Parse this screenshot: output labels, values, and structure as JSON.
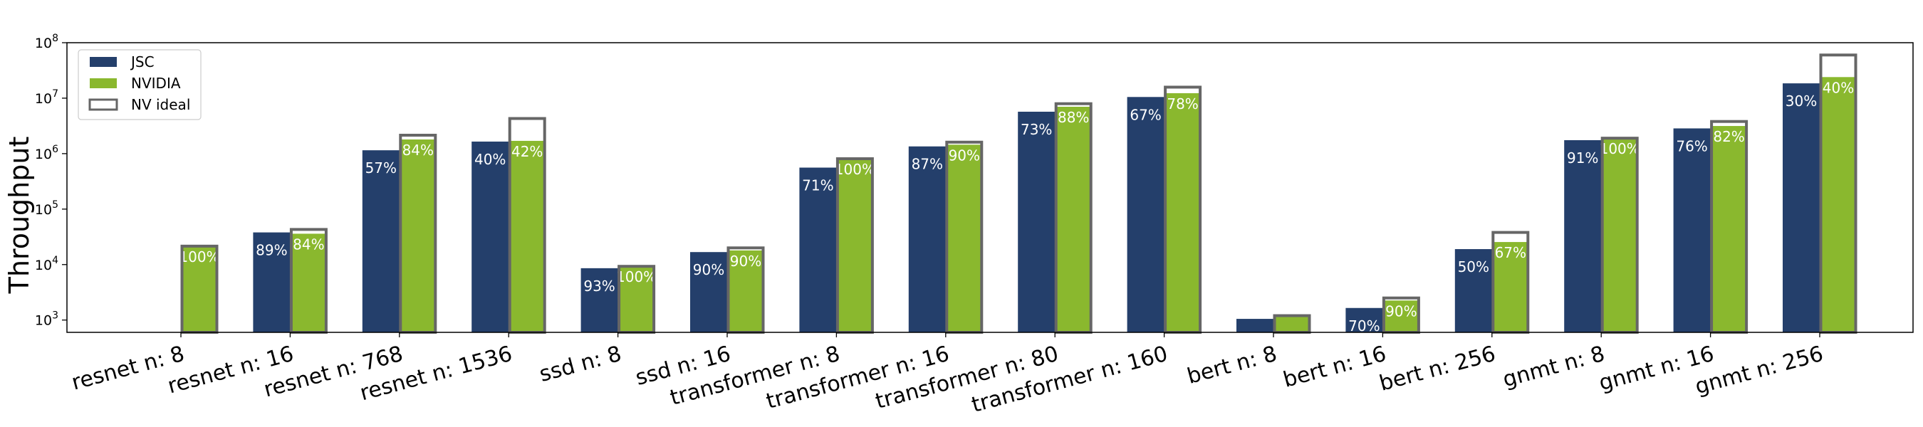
{
  "chart_data": {
    "type": "bar",
    "ylabel": "Throughput",
    "yscale": "log",
    "ylim": [
      600,
      100000000
    ],
    "yticks": [
      {
        "value": 1000,
        "base": "10",
        "exp": "3"
      },
      {
        "value": 10000,
        "base": "10",
        "exp": "4"
      },
      {
        "value": 100000,
        "base": "10",
        "exp": "5"
      },
      {
        "value": 1000000,
        "base": "10",
        "exp": "6"
      },
      {
        "value": 10000000,
        "base": "10",
        "exp": "7"
      },
      {
        "value": 100000000,
        "base": "10",
        "exp": "8"
      }
    ],
    "legend_position": "top-left",
    "categories": [
      "resnet n: 8",
      "resnet n: 16",
      "resnet n: 768",
      "resnet n: 1536",
      "ssd n: 8",
      "ssd n: 16",
      "transformer n: 8",
      "transformer n: 16",
      "transformer n: 80",
      "transformer n: 160",
      "bert n: 8",
      "bert n: 16",
      "bert n: 256",
      "gnmt n: 8",
      "gnmt n: 16",
      "gnmt n: 256"
    ],
    "series": [
      {
        "name": "JSC",
        "color": "#243f6b",
        "values": [
          null,
          38000,
          1150000,
          1650000,
          8600,
          16800,
          560000,
          1350000,
          5700000,
          10500000,
          1050,
          1650,
          19000,
          1750000,
          2850000,
          18500000
        ],
        "labels": [
          "",
          "89%",
          "57%",
          "40%",
          "93%",
          "90%",
          "71%",
          "87%",
          "73%",
          "67%",
          "",
          "70%",
          "50%",
          "91%",
          "76%",
          "30%"
        ]
      },
      {
        "name": "NVIDIA",
        "color": "#8ab82e",
        "values": [
          21500,
          36000,
          1800000,
          1700000,
          9300,
          18000,
          810000,
          1450000,
          7000000,
          12300000,
          1200,
          2250,
          25500,
          1900000,
          3150000,
          24000000
        ],
        "labels": [
          "100%",
          "84%",
          "84%",
          "42%",
          "100%",
          "90%",
          "100%",
          "90%",
          "88%",
          "78%",
          "",
          "90%",
          "67%",
          "100%",
          "82%",
          "40%"
        ]
      },
      {
        "name": "NV ideal",
        "color": "#666666",
        "values": [
          21500,
          43000,
          2150000,
          4300000,
          9300,
          20000,
          810000,
          1610000,
          7950000,
          15800000,
          1200,
          2500,
          38000,
          1900000,
          3800000,
          60000000
        ]
      }
    ]
  }
}
